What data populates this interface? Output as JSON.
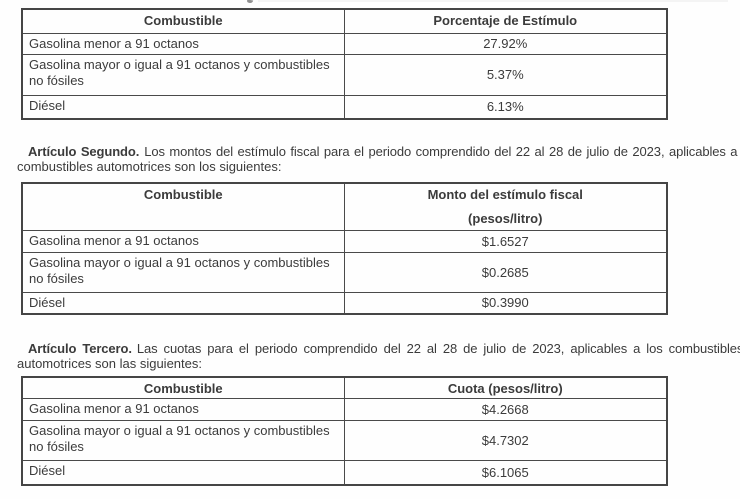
{
  "colors": {
    "background": "#fefefe",
    "text": "#3b3b3b",
    "table_border": "#4a4a4a"
  },
  "tables": {
    "porcentaje": {
      "combustible_header": "Combustible",
      "value_header": "Porcentaje de Estímulo",
      "rows": [
        {
          "combustible": "Gasolina menor a 91 octanos",
          "value": "27.92%"
        },
        {
          "combustible": "Gasolina mayor o igual a 91 octanos y combustibles no fósiles",
          "value": "5.37%"
        },
        {
          "combustible": "Diésel",
          "value": "6.13%"
        }
      ]
    },
    "monto": {
      "combustible_header": "Combustible",
      "value_header_line1": "Monto del estímulo fiscal",
      "value_header_line2": "(pesos/litro)",
      "rows": [
        {
          "combustible": "Gasolina menor a 91 octanos",
          "value": "$1.6527"
        },
        {
          "combustible": "Gasolina mayor o igual a 91 octanos y combustibles no fósiles",
          "value": "$0.2685"
        },
        {
          "combustible": "Diésel",
          "value": "$0.3990"
        }
      ]
    },
    "cuota": {
      "combustible_header": "Combustible",
      "value_header": "Cuota (pesos/litro)",
      "rows": [
        {
          "combustible": "Gasolina menor a 91 octanos",
          "value": "$4.2668"
        },
        {
          "combustible": "Gasolina mayor o igual a 91 octanos y combustibles no fósiles",
          "value": "$4.7302"
        },
        {
          "combustible": "Diésel",
          "value": "$6.1065"
        }
      ]
    }
  },
  "paragraphs": {
    "articulo_segundo": {
      "lead": "Artículo Segundo.",
      "line1": "Los montos del estímulo fiscal para el periodo comprendido del 22 al 28 de julio de 2023, aplicables a los",
      "line2": "combustibles automotrices son los siguientes:"
    },
    "articulo_tercero": {
      "lead": "Artículo Tercero.",
      "line1": "Las cuotas para el periodo comprendido del 22 al 28 de julio de 2023, aplicables a los combustibles",
      "line2": "automotrices son las siguientes:"
    }
  }
}
